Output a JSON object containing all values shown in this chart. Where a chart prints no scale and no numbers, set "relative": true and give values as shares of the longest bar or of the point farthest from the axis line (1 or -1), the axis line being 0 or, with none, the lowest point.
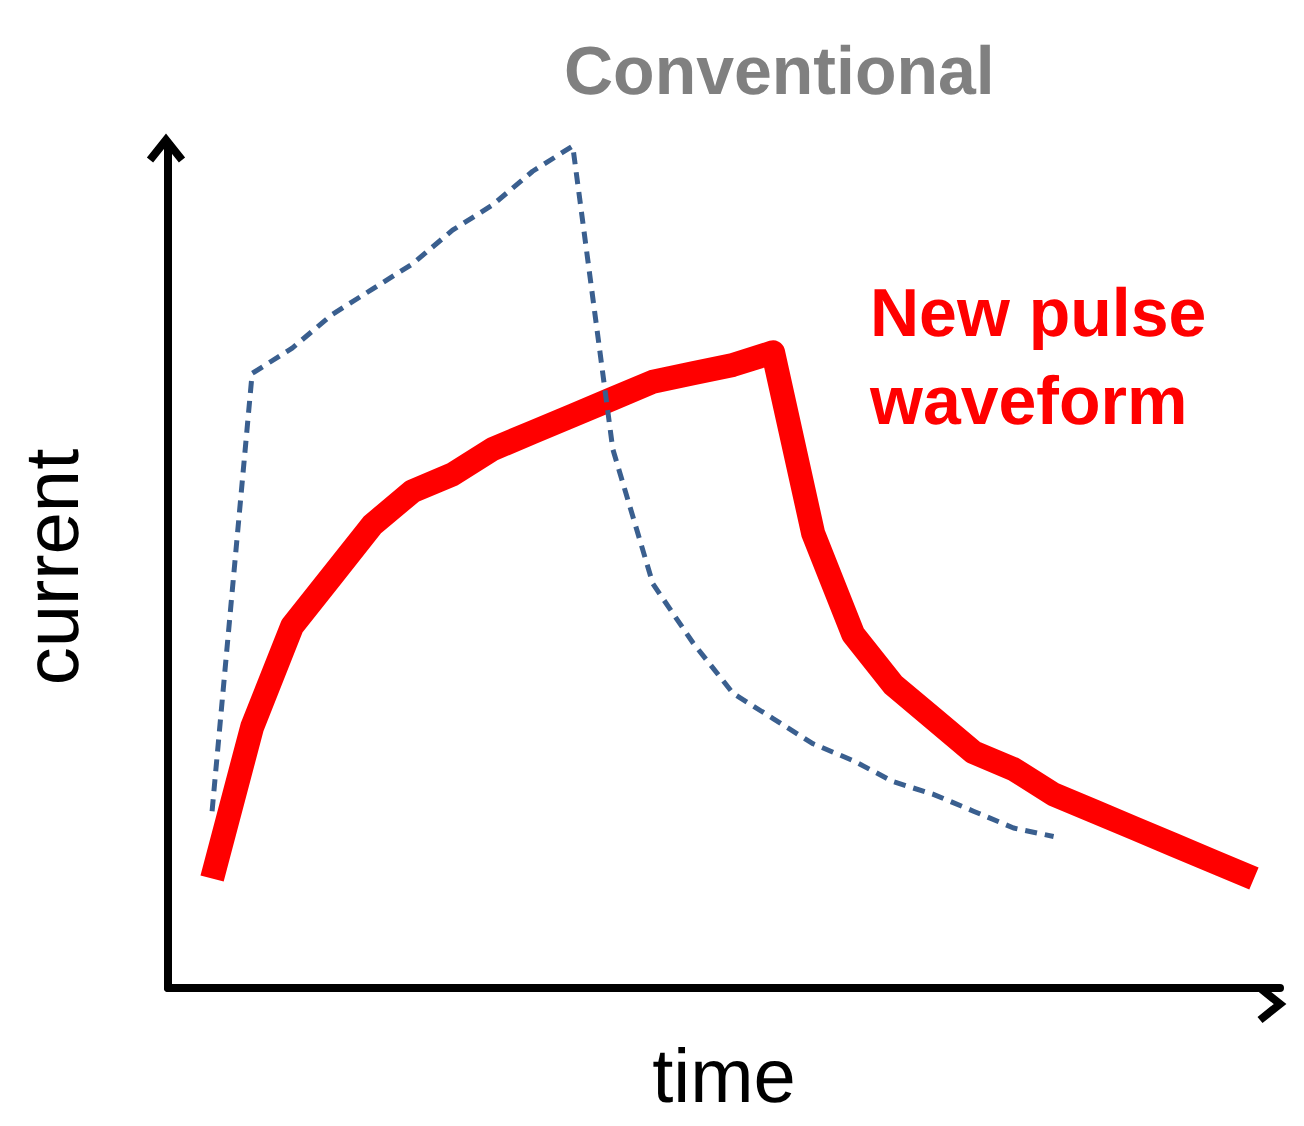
{
  "chart_data": {
    "type": "line",
    "relative": true,
    "xlabel": "time",
    "ylabel": "current",
    "marker": "none",
    "categories": [
      null,
      null,
      null,
      null,
      null,
      null,
      null,
      null,
      null,
      null,
      null,
      null,
      null,
      null,
      null,
      null,
      null,
      null,
      null,
      null,
      null,
      null,
      null,
      null,
      null,
      null,
      null
    ],
    "series": [
      {
        "name": "Conventional",
        "color": "#3a5f8f",
        "line_style": "dashed",
        "values": [
          0.21,
          0.73,
          0.76,
          0.8,
          0.83,
          0.86,
          0.9,
          0.93,
          0.97,
          1,
          0.64,
          0.48,
          0.41,
          0.35,
          0.32,
          0.29,
          0.27,
          0.245,
          0.23,
          0.21,
          0.19,
          0.18,
          null,
          null,
          null,
          null,
          null
        ]
      },
      {
        "name": "New pulse waveform",
        "color": "#ff0000",
        "line_style": "solid",
        "values": [
          0.13,
          0.31,
          0.43,
          0.49,
          0.55,
          0.59,
          0.61,
          0.64,
          0.66,
          0.68,
          0.7,
          0.72,
          0.73,
          0.74,
          0.755,
          0.54,
          0.42,
          0.36,
          0.32,
          0.28,
          0.26,
          0.23,
          0.21,
          0.19,
          0.17,
          0.15,
          0.13
        ]
      }
    ]
  }
}
